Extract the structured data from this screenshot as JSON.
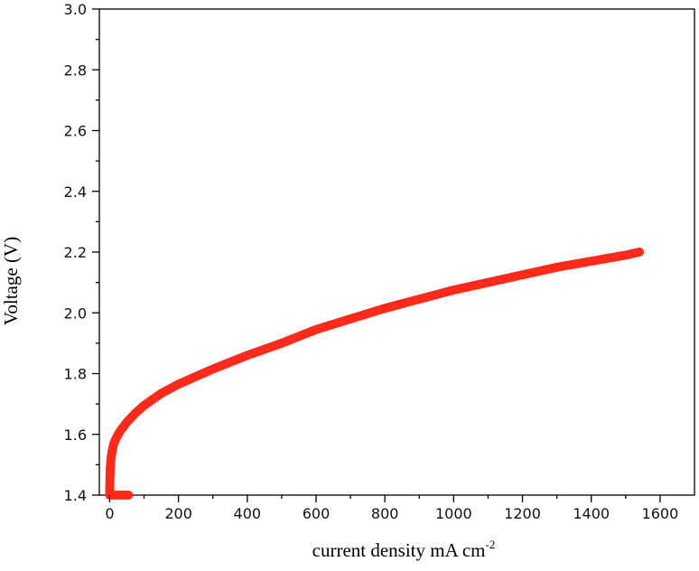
{
  "chart_data": {
    "type": "scatter",
    "title": "",
    "xlabel_main": "current density mA cm",
    "xlabel_sup": "-2",
    "ylabel": "Voltage (V)",
    "xlim": [
      -30,
      1700
    ],
    "ylim": [
      1.4,
      3.0
    ],
    "x_ticks": [
      0,
      200,
      400,
      600,
      800,
      1000,
      1200,
      1400,
      1600
    ],
    "y_ticks": [
      1.4,
      1.6,
      1.8,
      2.0,
      2.2,
      2.4,
      2.6,
      2.8,
      3.0
    ],
    "x_tick_labels": [
      "0",
      "200",
      "400",
      "600",
      "800",
      "1000",
      "1200",
      "1400",
      "1600"
    ],
    "y_tick_labels": [
      "1.4",
      "1.6",
      "1.8",
      "2.0",
      "2.2",
      "2.4",
      "2.6",
      "2.8",
      "3.0"
    ],
    "grid": false,
    "legend": "none",
    "series_color": "#ff2a1a",
    "series": [
      {
        "x": [
          55,
          40,
          20,
          8,
          0,
          1,
          2,
          3,
          5,
          8,
          12,
          20,
          30,
          50,
          75,
          100,
          150,
          200,
          250,
          300,
          400,
          500,
          600,
          700,
          800,
          900,
          1000,
          1100,
          1200,
          1300,
          1400,
          1500,
          1540
        ],
        "y": [
          1.4,
          1.4,
          1.4,
          1.4,
          1.4,
          1.46,
          1.49,
          1.51,
          1.53,
          1.55,
          1.57,
          1.59,
          1.61,
          1.64,
          1.67,
          1.695,
          1.735,
          1.765,
          1.79,
          1.815,
          1.86,
          1.9,
          1.945,
          1.98,
          2.015,
          2.045,
          2.075,
          2.1,
          2.125,
          2.15,
          2.17,
          2.19,
          2.2
        ]
      }
    ]
  }
}
